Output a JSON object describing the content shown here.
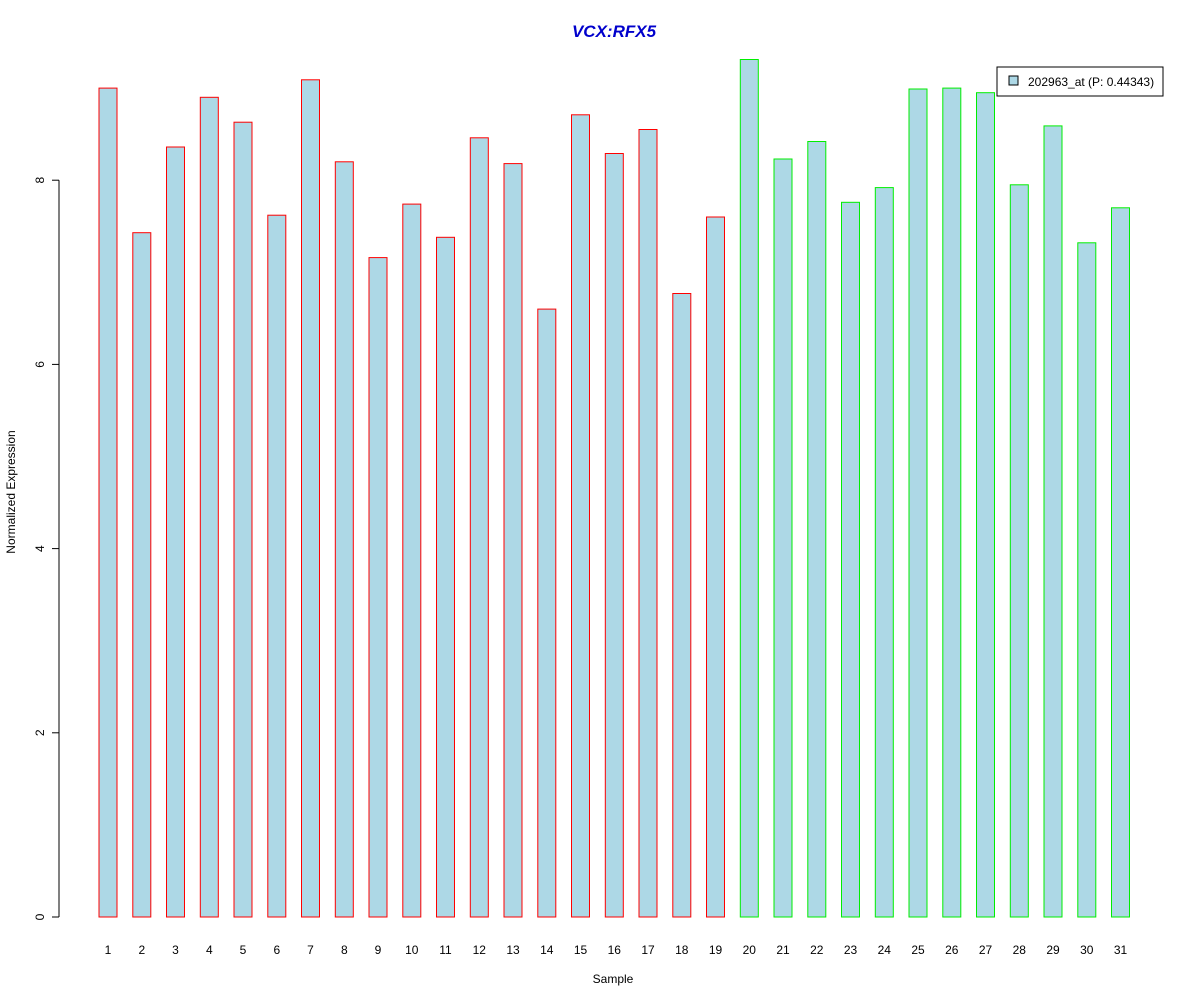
{
  "chart_data": {
    "type": "bar",
    "title": "VCX:RFX5",
    "xlabel": "Sample",
    "ylabel": "Normalized Expression",
    "categories": [
      "1",
      "2",
      "3",
      "4",
      "5",
      "6",
      "7",
      "8",
      "9",
      "10",
      "11",
      "12",
      "13",
      "14",
      "15",
      "16",
      "17",
      "18",
      "19",
      "20",
      "21",
      "22",
      "23",
      "24",
      "25",
      "26",
      "27",
      "28",
      "29",
      "30",
      "31"
    ],
    "series": [
      {
        "name": "202963_at (P: 0.44343)",
        "values": [
          9.0,
          7.43,
          8.36,
          8.9,
          8.63,
          7.62,
          9.09,
          8.2,
          7.16,
          7.74,
          7.38,
          8.46,
          8.18,
          6.6,
          8.71,
          8.29,
          8.55,
          6.77,
          7.6,
          9.31,
          8.23,
          8.42,
          7.76,
          7.92,
          8.99,
          9.0,
          8.95,
          7.95,
          8.59,
          7.32,
          7.7
        ]
      }
    ],
    "ylim": [
      0,
      9.31
    ],
    "yticks": [
      "0",
      "2",
      "4",
      "6",
      "8"
    ],
    "group_split_after": 19,
    "colors": {
      "bar_fill": "#add8e6",
      "group1_border": "#ff0000",
      "group2_border": "#00ee00",
      "title": "#0000cc"
    },
    "legend_position": "top-right",
    "grid": false
  }
}
